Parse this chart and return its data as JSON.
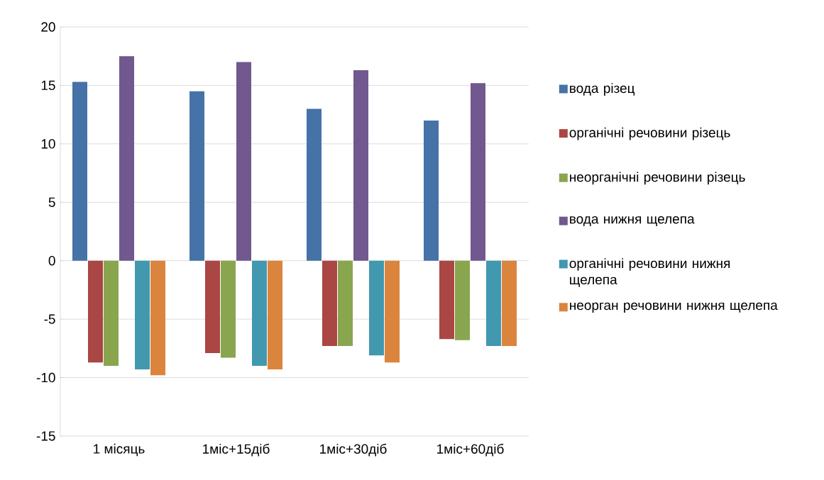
{
  "chart_data": {
    "type": "bar",
    "categories": [
      "1 місяць",
      "1міс+15діб",
      "1міс+30діб",
      "1міс+60діб"
    ],
    "series": [
      {
        "name": "вода різец",
        "color": "#4572a7",
        "values": [
          15.3,
          14.5,
          13.0,
          12.0
        ]
      },
      {
        "name": "органічні речовини різець",
        "color": "#aa4643",
        "values": [
          -8.7,
          -7.9,
          -7.3,
          -6.7
        ]
      },
      {
        "name": "неорганічні речовини різець",
        "color": "#89a54e",
        "values": [
          -9.0,
          -8.3,
          -7.3,
          -6.8
        ]
      },
      {
        "name": "вода нижня щелепа",
        "color": "#71588f",
        "values": [
          17.5,
          17.0,
          16.3,
          15.2
        ]
      },
      {
        "name": "органічні речовини нижня щелепа",
        "color": "#4198af",
        "values": [
          -9.3,
          -9.0,
          -8.1,
          -7.3
        ]
      },
      {
        "name": "неорган речовини нижня щелепа",
        "color": "#db843d",
        "values": [
          -9.8,
          -9.3,
          -8.7,
          -7.3
        ]
      }
    ],
    "ylim": [
      -15,
      20
    ],
    "yticks": [
      -15,
      -10,
      -5,
      0,
      5,
      10,
      15,
      20
    ],
    "grid": "y",
    "legend": "right"
  }
}
